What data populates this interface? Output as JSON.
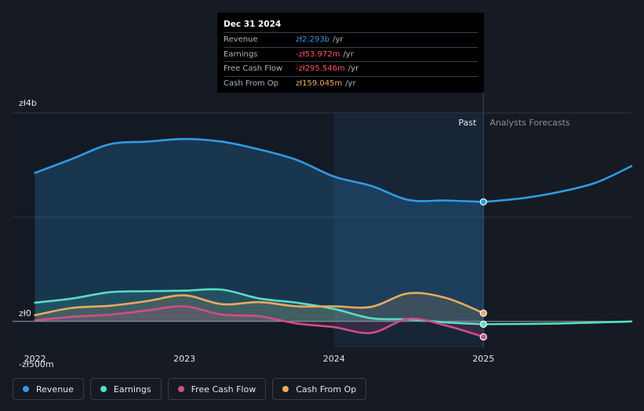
{
  "chart_data": {
    "type": "line",
    "currency": "zł",
    "y_ticks": [
      {
        "value": 4000,
        "label": "zł4b"
      },
      {
        "value": 0,
        "label": "zł0"
      },
      {
        "value": -500,
        "label": "-zł500m"
      }
    ],
    "ylim": [
      -500,
      4000
    ],
    "xlim": [
      2021.85,
      2025.99
    ],
    "x_ticks": [
      {
        "value": 2022,
        "label": "2022"
      },
      {
        "value": 2023,
        "label": "2023"
      },
      {
        "value": 2024,
        "label": "2024"
      },
      {
        "value": 2025,
        "label": "2025"
      }
    ],
    "past_label": "Past",
    "forecast_label": "Analysts Forecasts",
    "divider_x": 2025.0,
    "highlight_start_x": 2024.0,
    "series": [
      {
        "name": "Revenue",
        "color": "#2f9be6",
        "fill": true,
        "past": [
          [
            2022.0,
            2850
          ],
          [
            2022.25,
            3120
          ],
          [
            2022.5,
            3400
          ],
          [
            2022.75,
            3450
          ],
          [
            2023.0,
            3500
          ],
          [
            2023.25,
            3450
          ],
          [
            2023.5,
            3300
          ],
          [
            2023.75,
            3100
          ],
          [
            2024.0,
            2780
          ],
          [
            2024.25,
            2600
          ],
          [
            2024.5,
            2330
          ],
          [
            2024.75,
            2320
          ],
          [
            2025.0,
            2293
          ]
        ],
        "forecast": [
          [
            2025.0,
            2293
          ],
          [
            2025.25,
            2360
          ],
          [
            2025.5,
            2480
          ],
          [
            2025.75,
            2660
          ],
          [
            2025.99,
            2980
          ]
        ]
      },
      {
        "name": "Earnings",
        "color": "#58dcc4",
        "fill": true,
        "past": [
          [
            2022.0,
            360
          ],
          [
            2022.25,
            440
          ],
          [
            2022.5,
            560
          ],
          [
            2022.75,
            580
          ],
          [
            2023.0,
            590
          ],
          [
            2023.25,
            610
          ],
          [
            2023.5,
            440
          ],
          [
            2023.75,
            360
          ],
          [
            2024.0,
            240
          ],
          [
            2024.25,
            60
          ],
          [
            2024.5,
            40
          ],
          [
            2024.75,
            -20
          ],
          [
            2025.0,
            -54
          ]
        ],
        "forecast": [
          [
            2025.0,
            -54
          ],
          [
            2025.5,
            -40
          ],
          [
            2025.99,
            0
          ]
        ]
      },
      {
        "name": "Free Cash Flow",
        "color": "#d04c8c",
        "fill": true,
        "past": [
          [
            2022.0,
            20
          ],
          [
            2022.25,
            90
          ],
          [
            2022.5,
            130
          ],
          [
            2022.75,
            210
          ],
          [
            2023.0,
            290
          ],
          [
            2023.25,
            130
          ],
          [
            2023.5,
            100
          ],
          [
            2023.75,
            -40
          ],
          [
            2024.0,
            -110
          ],
          [
            2024.25,
            -220
          ],
          [
            2024.5,
            50
          ],
          [
            2024.75,
            -80
          ],
          [
            2025.0,
            -296
          ]
        ],
        "forecast": []
      },
      {
        "name": "Cash From Op",
        "color": "#e8ab5c",
        "fill": true,
        "past": [
          [
            2022.0,
            120
          ],
          [
            2022.25,
            260
          ],
          [
            2022.5,
            300
          ],
          [
            2022.75,
            390
          ],
          [
            2023.0,
            500
          ],
          [
            2023.25,
            330
          ],
          [
            2023.5,
            370
          ],
          [
            2023.75,
            290
          ],
          [
            2024.0,
            290
          ],
          [
            2024.25,
            280
          ],
          [
            2024.5,
            540
          ],
          [
            2024.75,
            450
          ],
          [
            2025.0,
            159
          ]
        ],
        "forecast": []
      }
    ]
  },
  "tooltip": {
    "date": "Dec 31 2024",
    "unit": "/yr",
    "rows": [
      {
        "label": "Revenue",
        "value": "zł2.293b",
        "color": "#2f9be6"
      },
      {
        "label": "Earnings",
        "value": "-zł53.972m",
        "color": "#ff5a5a"
      },
      {
        "label": "Free Cash Flow",
        "value": "-zł295.546m",
        "color": "#ff5a5a"
      },
      {
        "label": "Cash From Op",
        "value": "zł159.045m",
        "color": "#e8ab5c"
      }
    ]
  },
  "legend": [
    {
      "label": "Revenue",
      "color": "#2f9be6"
    },
    {
      "label": "Earnings",
      "color": "#58dcc4"
    },
    {
      "label": "Free Cash Flow",
      "color": "#d04c8c"
    },
    {
      "label": "Cash From Op",
      "color": "#e8ab5c"
    }
  ]
}
